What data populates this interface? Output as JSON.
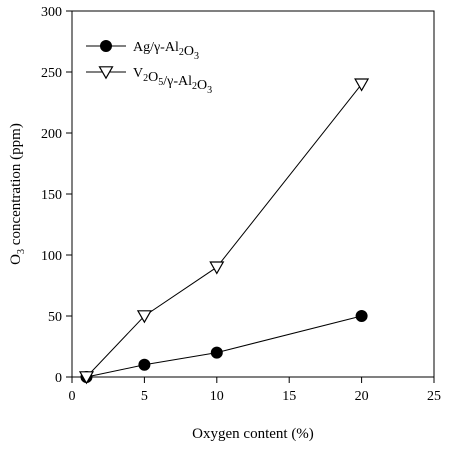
{
  "chart_data": {
    "type": "line",
    "xlabel": "Oxygen content (%)",
    "ylabel_parts": {
      "pre": "O",
      "sub": "3",
      "post": " concentration (ppm)"
    },
    "xlim": [
      0,
      25
    ],
    "ylim": [
      0,
      300
    ],
    "xticks": [
      0,
      5,
      10,
      15,
      20,
      25
    ],
    "yticks": [
      0,
      50,
      100,
      150,
      200,
      250,
      300
    ],
    "grid": false,
    "legend_placement": "top-left",
    "series": [
      {
        "name": "Ag/γ-Al2O3",
        "label_parts": [
          {
            "t": "Ag/γ-Al"
          },
          {
            "t": "2",
            "sub": true
          },
          {
            "t": "O"
          },
          {
            "t": "3",
            "sub": true
          }
        ],
        "marker": "filled-circle",
        "x": [
          1,
          5,
          10,
          20
        ],
        "y": [
          0,
          10,
          20,
          50
        ]
      },
      {
        "name": "V2O5/γ-Al2O3",
        "label_parts": [
          {
            "t": "V"
          },
          {
            "t": "2",
            "sub": true
          },
          {
            "t": "O"
          },
          {
            "t": "5",
            "sub": true
          },
          {
            "t": "/γ-Al"
          },
          {
            "t": "2",
            "sub": true
          },
          {
            "t": "O"
          },
          {
            "t": "3",
            "sub": true
          }
        ],
        "marker": "open-down-triangle",
        "x": [
          1,
          5,
          10,
          20
        ],
        "y": [
          0,
          50,
          90,
          240
        ]
      }
    ]
  }
}
